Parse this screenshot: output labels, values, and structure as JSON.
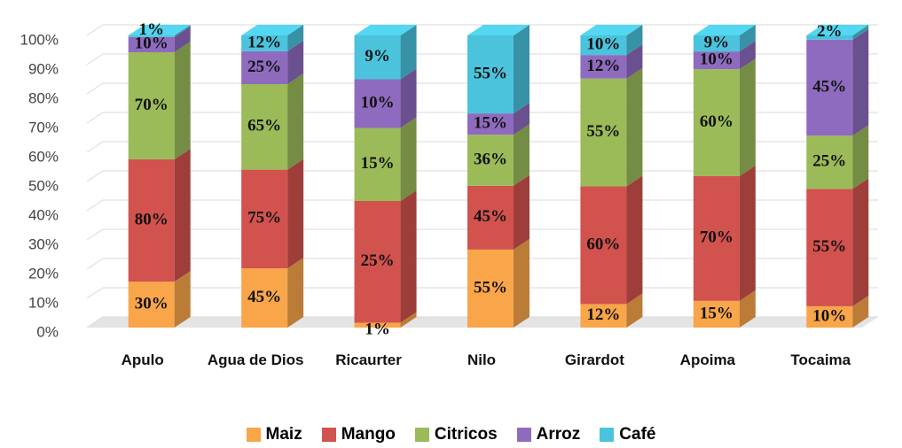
{
  "chart_data": {
    "type": "bar",
    "stacked": "percent",
    "categories": [
      "Apulo",
      "Agua de Dios",
      "Ricaurter",
      "Nilo",
      "Girardot",
      "Apoima",
      "Tocaima"
    ],
    "series": [
      {
        "name": "Maiz",
        "color": "#f9a54a",
        "values": [
          30,
          45,
          1,
          55,
          12,
          15,
          10
        ],
        "value_labels": [
          "30%",
          "45%",
          "1%",
          "55%",
          "12%",
          "15%",
          "10%"
        ]
      },
      {
        "name": "Mango",
        "color": "#d2524e",
        "values": [
          80,
          75,
          25,
          45,
          60,
          70,
          55
        ],
        "value_labels": [
          "80%",
          "75%",
          "25%",
          "45%",
          "60%",
          "70%",
          "55%"
        ]
      },
      {
        "name": "Citricos",
        "color": "#9bbb59",
        "values": [
          70,
          65,
          15,
          36,
          55,
          60,
          25
        ],
        "value_labels": [
          "70%",
          "65%",
          "15%",
          "36%",
          "55%",
          "60%",
          "25%"
        ]
      },
      {
        "name": "Arroz",
        "color": "#8e6bbf",
        "values": [
          10,
          25,
          10,
          15,
          12,
          10,
          45
        ],
        "value_labels": [
          "10%",
          "25%",
          "10%",
          "15%",
          "12%",
          "10%",
          "45%"
        ]
      },
      {
        "name": "Café",
        "color": "#4bc3dc",
        "values": [
          1,
          12,
          9,
          55,
          10,
          9,
          2
        ],
        "value_labels": [
          "1%",
          "12%",
          "9%",
          "55%",
          "10%",
          "9%",
          "2%"
        ]
      }
    ],
    "ylim": [
      0,
      100
    ],
    "yticks": [
      {
        "value": 0,
        "label": "0%"
      },
      {
        "value": 10,
        "label": "10%"
      },
      {
        "value": 20,
        "label": "20%"
      },
      {
        "value": 30,
        "label": "30%"
      },
      {
        "value": 40,
        "label": "40%"
      },
      {
        "value": 50,
        "label": "50%"
      },
      {
        "value": 60,
        "label": "60%"
      },
      {
        "value": 70,
        "label": "70%"
      },
      {
        "value": 80,
        "label": "80%"
      },
      {
        "value": 90,
        "label": "90%"
      },
      {
        "value": 100,
        "label": "100%"
      }
    ],
    "grid": true,
    "legend": "bottom"
  }
}
